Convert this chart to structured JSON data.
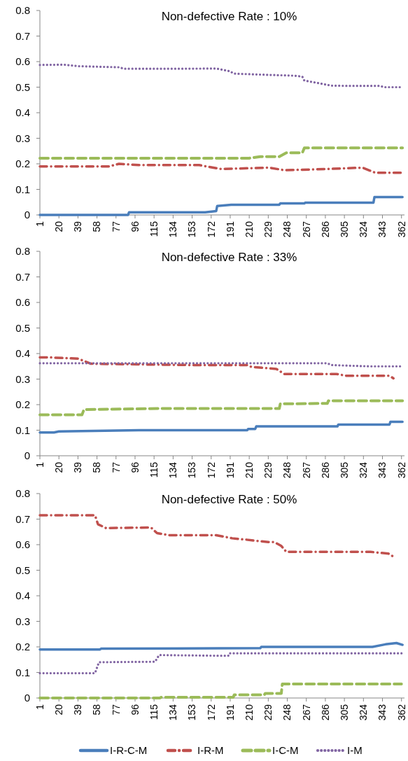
{
  "chart_data": [
    {
      "type": "line",
      "title": "Non-defective Rate : 10%",
      "xlim": [
        1,
        365
      ],
      "xticks": [
        1,
        20,
        39,
        58,
        77,
        96,
        115,
        134,
        153,
        172,
        191,
        210,
        229,
        248,
        267,
        286,
        305,
        324,
        343,
        362
      ],
      "ylim": [
        0,
        0.8
      ],
      "yticks": [
        0,
        0.1,
        0.2,
        0.3,
        0.4,
        0.5,
        0.6,
        0.7,
        0.8
      ],
      "grid": false,
      "legend": false,
      "series": [
        {
          "color": "#4a7ebb",
          "line_style": "solid",
          "x": [
            1,
            89,
            90,
            166,
            177,
            178,
            192,
            240,
            241,
            265,
            266,
            334,
            335,
            363
          ],
          "values": [
            0,
            0,
            0.01,
            0.01,
            0.015,
            0.035,
            0.04,
            0.04,
            0.045,
            0.045,
            0.048,
            0.048,
            0.07,
            0.07
          ]
        },
        {
          "color": "#c0504d",
          "line_style": "dashdot",
          "x": [
            1,
            70,
            80,
            100,
            160,
            181,
            185,
            230,
            245,
            290,
            323,
            336,
            363
          ],
          "values": [
            0.19,
            0.19,
            0.2,
            0.195,
            0.195,
            0.18,
            0.18,
            0.185,
            0.175,
            0.18,
            0.185,
            0.165,
            0.165
          ]
        },
        {
          "color": "#9bbb59",
          "line_style": "dashed",
          "x": [
            1,
            210,
            221,
            240,
            247,
            263,
            265,
            363
          ],
          "values": [
            0.222,
            0.222,
            0.228,
            0.228,
            0.243,
            0.243,
            0.262,
            0.262
          ]
        },
        {
          "color": "#8064a2",
          "line_style": "dotted",
          "x": [
            1,
            25,
            40,
            80,
            85,
            130,
            177,
            190,
            195,
            230,
            255,
            263,
            265,
            280,
            292,
            310,
            340,
            345,
            363
          ],
          "values": [
            0.587,
            0.588,
            0.582,
            0.578,
            0.572,
            0.572,
            0.573,
            0.563,
            0.553,
            0.548,
            0.545,
            0.541,
            0.526,
            0.515,
            0.506,
            0.505,
            0.505,
            0.5,
            0.5
          ]
        }
      ]
    },
    {
      "type": "line",
      "title": "Non-defective Rate : 33%",
      "xlim": [
        1,
        365
      ],
      "xticks": [
        1,
        20,
        39,
        58,
        77,
        96,
        115,
        134,
        153,
        172,
        191,
        210,
        229,
        248,
        267,
        286,
        305,
        324,
        343,
        362
      ],
      "ylim": [
        0,
        0.8
      ],
      "yticks": [
        0,
        0.1,
        0.2,
        0.3,
        0.4,
        0.5,
        0.6,
        0.7,
        0.8
      ],
      "grid": false,
      "legend": false,
      "series": [
        {
          "color": "#4a7ebb",
          "line_style": "solid",
          "x": [
            1,
            15,
            20,
            100,
            208,
            209,
            216,
            217,
            298,
            299,
            350,
            351,
            363
          ],
          "values": [
            0.091,
            0.091,
            0.095,
            0.1,
            0.1,
            0.105,
            0.105,
            0.115,
            0.115,
            0.122,
            0.122,
            0.133,
            0.133
          ]
        },
        {
          "color": "#9bbb59",
          "line_style": "dashed",
          "x": [
            1,
            43,
            45,
            120,
            240,
            241,
            288,
            289,
            363
          ],
          "values": [
            0.16,
            0.16,
            0.181,
            0.185,
            0.185,
            0.203,
            0.205,
            0.215,
            0.215
          ]
        },
        {
          "color": "#c0504d",
          "line_style": "dashdot",
          "x": [
            1,
            10,
            39,
            52,
            150,
            208,
            212,
            237,
            245,
            297,
            307,
            350,
            354
          ],
          "values": [
            0.385,
            0.385,
            0.38,
            0.36,
            0.355,
            0.355,
            0.348,
            0.34,
            0.32,
            0.32,
            0.313,
            0.313,
            0.303
          ]
        },
        {
          "color": "#8064a2",
          "line_style": "dotted",
          "x": [
            1,
            150,
            288,
            292,
            330,
            363
          ],
          "values": [
            0.362,
            0.362,
            0.362,
            0.355,
            0.35,
            0.35
          ]
        }
      ]
    },
    {
      "type": "line",
      "title": "Non-defective Rate : 50%",
      "xlim": [
        1,
        365
      ],
      "xticks": [
        1,
        20,
        39,
        58,
        77,
        96,
        115,
        134,
        153,
        172,
        191,
        210,
        229,
        248,
        267,
        286,
        305,
        324,
        343,
        362
      ],
      "ylim": [
        0,
        0.8
      ],
      "yticks": [
        0,
        0.1,
        0.2,
        0.3,
        0.4,
        0.5,
        0.6,
        0.7,
        0.8
      ],
      "grid": false,
      "legend": "bottom",
      "series": [
        {
          "name": "I-R-C-M",
          "color": "#4a7ebb",
          "line_style": "solid",
          "x": [
            1,
            61,
            62,
            221,
            222,
            333,
            346,
            357,
            363
          ],
          "values": [
            0.19,
            0.19,
            0.193,
            0.195,
            0.2,
            0.2,
            0.21,
            0.215,
            0.208
          ]
        },
        {
          "name": "I-R-M",
          "color": "#c0504d",
          "line_style": "dashdot",
          "x": [
            1,
            56,
            59,
            67,
            112,
            118,
            130,
            177,
            193,
            206,
            229,
            235,
            242,
            247,
            331,
            349,
            354
          ],
          "values": [
            0.715,
            0.715,
            0.68,
            0.665,
            0.667,
            0.645,
            0.637,
            0.637,
            0.625,
            0.62,
            0.61,
            0.61,
            0.595,
            0.572,
            0.572,
            0.565,
            0.553
          ]
        },
        {
          "name": "I-C-M",
          "color": "#9bbb59",
          "line_style": "dashed",
          "x": [
            1,
            121,
            122,
            194,
            195,
            225,
            226,
            242,
            243,
            362
          ],
          "values": [
            0,
            0,
            0.003,
            0.003,
            0.012,
            0.012,
            0.018,
            0.018,
            0.055,
            0.055
          ]
        },
        {
          "name": "I-M",
          "color": "#8064a2",
          "line_style": "dotted",
          "x": [
            1,
            56,
            60,
            116,
            120,
            189,
            190,
            362
          ],
          "values": [
            0.097,
            0.097,
            0.14,
            0.142,
            0.168,
            0.165,
            0.175,
            0.175
          ]
        }
      ]
    }
  ]
}
